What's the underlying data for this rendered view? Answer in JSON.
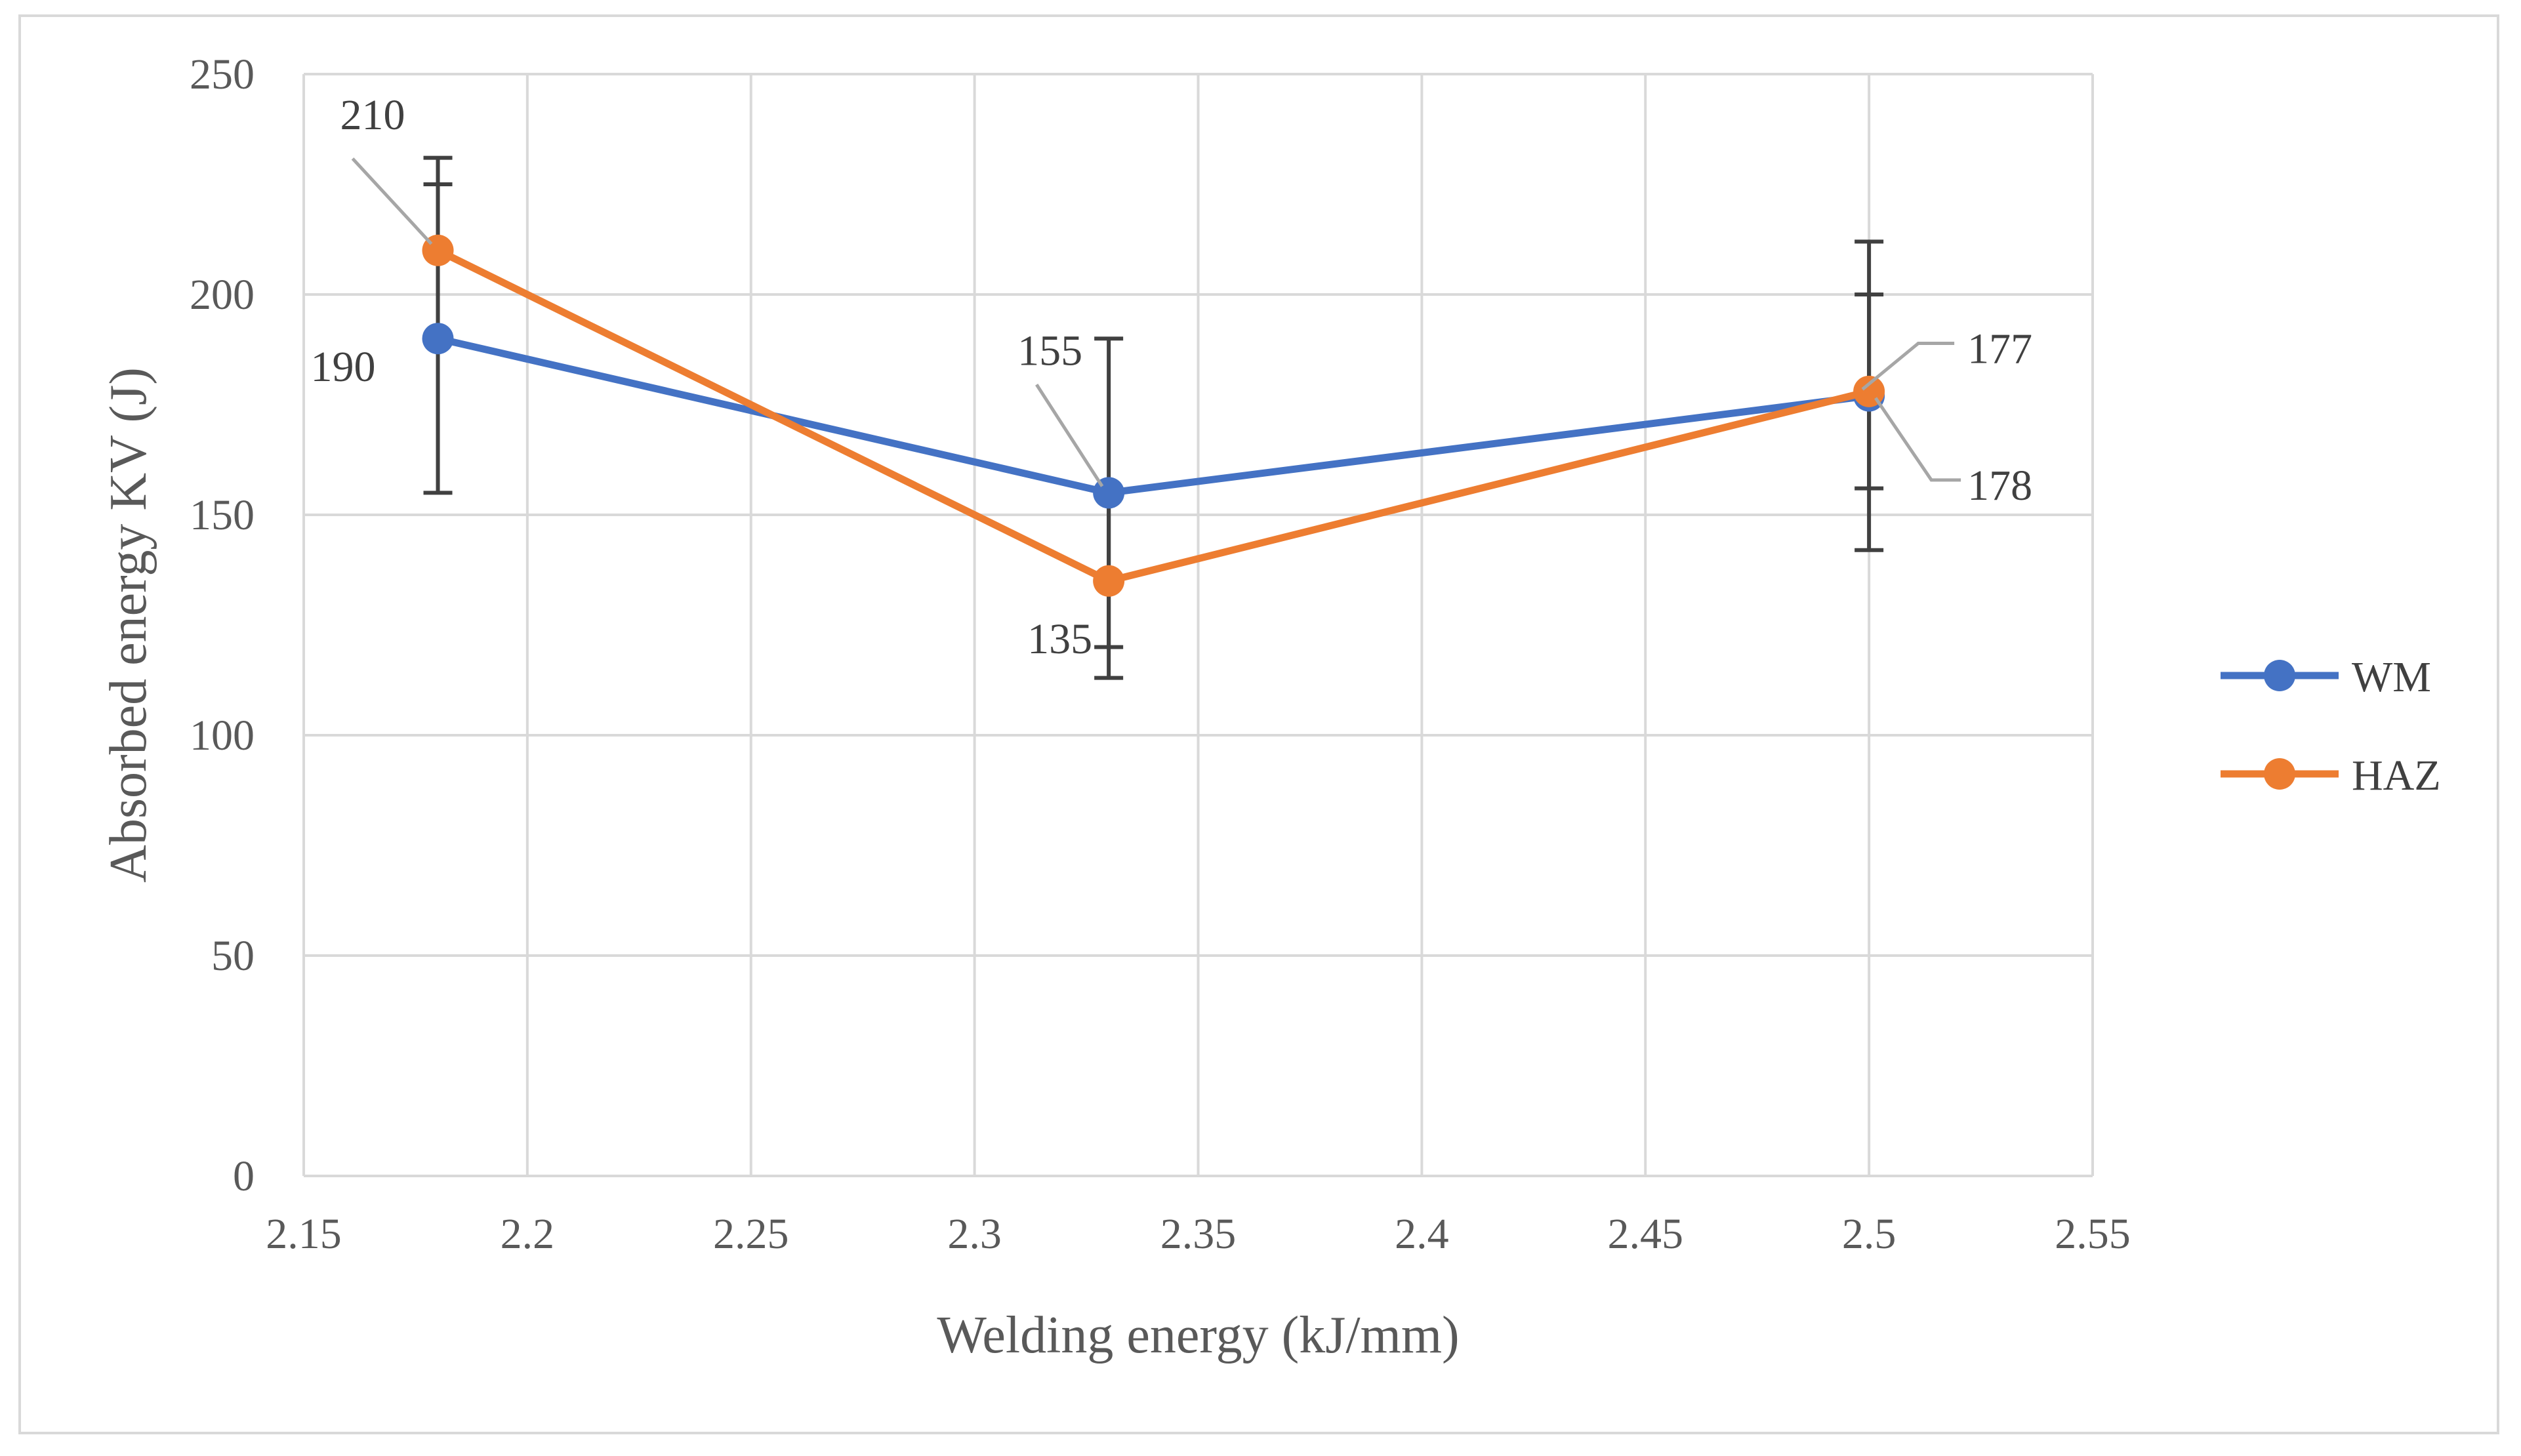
{
  "chart_data": {
    "type": "line",
    "xlabel": "Welding energy (kJ/mm)",
    "ylabel": "Absorbed energy KV (J)",
    "xlim": [
      2.15,
      2.55
    ],
    "ylim": [
      0,
      250
    ],
    "x_ticks": [
      "2.15",
      "2.2",
      "2.25",
      "2.3",
      "2.35",
      "2.4",
      "2.45",
      "2.5",
      "2.55"
    ],
    "y_ticks": [
      "0",
      "50",
      "100",
      "150",
      "200",
      "250"
    ],
    "grid": true,
    "legend_position": "right",
    "series": [
      {
        "name": "WM",
        "color": "#4472c4",
        "x": [
          2.18,
          2.33,
          2.5
        ],
        "y": [
          190,
          155,
          177
        ],
        "error_low": [
          155,
          113,
          142
        ],
        "error_high": [
          225,
          190,
          212
        ],
        "labels": [
          "190",
          "155",
          "177"
        ]
      },
      {
        "name": "HAZ",
        "color": "#ed7d31",
        "x": [
          2.18,
          2.33,
          2.5
        ],
        "y": [
          210,
          135,
          178
        ],
        "error_low": [
          190,
          120,
          156
        ],
        "error_high": [
          231,
          155,
          200
        ],
        "labels": [
          "210",
          "135",
          "178"
        ]
      }
    ]
  }
}
